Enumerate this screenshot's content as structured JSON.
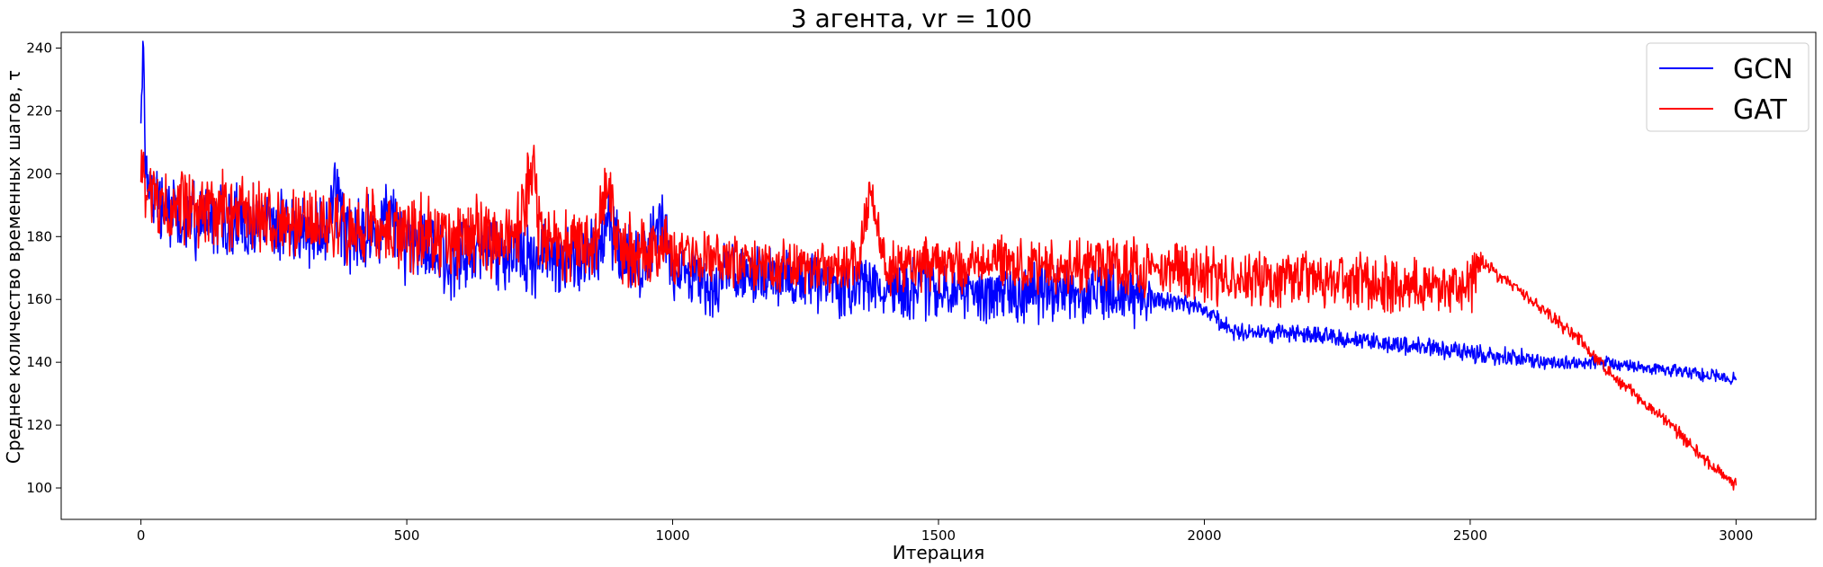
{
  "chart_data": {
    "type": "line",
    "title": "3 агента, vr = 100",
    "xlabel": "Итерация",
    "ylabel": "Среднее количество временных шагов, τ",
    "xlim": [
      -150,
      3150
    ],
    "ylim": [
      90,
      245
    ],
    "xticks": [
      0,
      500,
      1000,
      1500,
      2000,
      2500,
      3000
    ],
    "yticks": [
      100,
      120,
      140,
      160,
      180,
      200,
      220,
      240
    ],
    "grid": false,
    "legend_placement": "top-right",
    "series": [
      {
        "name": "GCN",
        "color": "#0000ff",
        "x": [
          0,
          5,
          10,
          20,
          30,
          50,
          100,
          150,
          200,
          250,
          300,
          350,
          365,
          380,
          400,
          450,
          460,
          480,
          500,
          550,
          590,
          600,
          650,
          700,
          750,
          800,
          850,
          880,
          900,
          950,
          980,
          1000,
          1050,
          1070,
          1100,
          1150,
          1200,
          1250,
          1300,
          1350,
          1400,
          1450,
          1500,
          1550,
          1600,
          1650,
          1700,
          1750,
          1800,
          1850,
          1900,
          1950,
          2000,
          2050,
          2100,
          2150,
          2200,
          2250,
          2300,
          2350,
          2400,
          2450,
          2500,
          2550,
          2600,
          2650,
          2700,
          2750,
          2800,
          2850,
          2900,
          2950,
          3000
        ],
        "y": [
          230,
          236,
          200,
          195,
          190,
          188,
          186,
          185,
          184,
          183,
          182,
          181,
          195,
          182,
          180,
          179,
          195,
          180,
          178,
          176,
          170,
          175,
          175,
          174,
          174,
          173,
          172,
          188,
          172,
          171,
          185,
          170,
          168,
          160,
          169,
          168,
          167,
          166,
          165,
          164,
          164,
          163,
          163,
          163,
          162,
          162,
          162,
          161,
          161,
          161,
          160,
          159,
          157,
          150,
          149,
          149,
          149,
          148,
          147,
          146,
          145,
          144,
          143,
          142,
          141,
          140,
          140,
          140,
          139,
          138,
          137,
          136,
          135
        ]
      },
      {
        "name": "GAT",
        "color": "#ff0000",
        "x": [
          0,
          10,
          50,
          100,
          150,
          200,
          250,
          300,
          350,
          400,
          450,
          500,
          550,
          600,
          650,
          700,
          740,
          750,
          800,
          850,
          880,
          900,
          950,
          1000,
          1050,
          1100,
          1150,
          1200,
          1250,
          1300,
          1350,
          1370,
          1400,
          1450,
          1500,
          1550,
          1600,
          1650,
          1700,
          1750,
          1800,
          1850,
          1900,
          1950,
          2000,
          2050,
          2100,
          2150,
          2200,
          2250,
          2300,
          2350,
          2400,
          2450,
          2500,
          2520,
          2550,
          2600,
          2650,
          2700,
          2750,
          2800,
          2850,
          2900,
          2950,
          3000
        ],
        "y": [
          200,
          192,
          190,
          189,
          188,
          187,
          186,
          185,
          184,
          183,
          182,
          181,
          181,
          180,
          180,
          180,
          200,
          180,
          178,
          178,
          195,
          176,
          175,
          174,
          173,
          172,
          171,
          171,
          170,
          170,
          170,
          195,
          170,
          170,
          171,
          171,
          171,
          171,
          171,
          171,
          171,
          171,
          170,
          170,
          168,
          167,
          166,
          166,
          166,
          166,
          166,
          165,
          165,
          164,
          164,
          172,
          168,
          162,
          155,
          148,
          139,
          131,
          124,
          116,
          108,
          101
        ]
      }
    ]
  }
}
